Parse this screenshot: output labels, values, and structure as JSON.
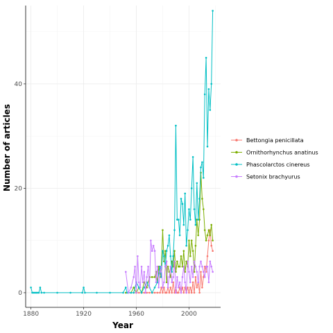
{
  "chart_data": {
    "type": "line",
    "title": "",
    "xlabel": "Year",
    "ylabel": "Number of articles",
    "xlim": [
      1876,
      2024
    ],
    "ylim": [
      -2.8,
      55
    ],
    "xticks": [
      1880,
      1920,
      1960,
      2000
    ],
    "yticks": [
      0,
      20,
      40
    ],
    "grid": true,
    "legend_position": "right",
    "series": [
      {
        "name": "Bettongia penicillata",
        "color": "#F8766D",
        "x": [
          1958,
          1960,
          1962,
          1964,
          1966,
          1968,
          1970,
          1972,
          1974,
          1976,
          1978,
          1979,
          1980,
          1981,
          1982,
          1983,
          1984,
          1985,
          1986,
          1987,
          1988,
          1989,
          1990,
          1991,
          1992,
          1993,
          1994,
          1995,
          1996,
          1997,
          1998,
          1999,
          2000,
          2001,
          2002,
          2003,
          2004,
          2005,
          2006,
          2007,
          2008,
          2009,
          2010,
          2011,
          2012,
          2013,
          2014,
          2015,
          2016,
          2017,
          2018
        ],
        "y": [
          0,
          0,
          0,
          0,
          0,
          0,
          0,
          0,
          0,
          0,
          0,
          1,
          0,
          1,
          0,
          0,
          1,
          0,
          1,
          0,
          2,
          0,
          1,
          0,
          0,
          1,
          0,
          1,
          0,
          1,
          0,
          1,
          0,
          1,
          0,
          2,
          0,
          3,
          1,
          2,
          0,
          4,
          1,
          3,
          5,
          4,
          7,
          10,
          12,
          9,
          8
        ]
      },
      {
        "name": "Ornithorhynchus anatinus",
        "color": "#7CAE00",
        "x": [
          1952,
          1956,
          1958,
          1960,
          1962,
          1964,
          1966,
          1968,
          1970,
          1972,
          1974,
          1975,
          1976,
          1977,
          1978,
          1979,
          1980,
          1981,
          1982,
          1983,
          1984,
          1985,
          1986,
          1987,
          1988,
          1989,
          1990,
          1991,
          1992,
          1993,
          1994,
          1995,
          1996,
          1997,
          1998,
          1999,
          2000,
          2001,
          2002,
          2003,
          2004,
          2005,
          2006,
          2007,
          2008,
          2009,
          2010,
          2011,
          2012,
          2013,
          2014,
          2015,
          2016,
          2017,
          2018
        ],
        "y": [
          0,
          0,
          1,
          0,
          1,
          0,
          2,
          1,
          3,
          3,
          3,
          4,
          2,
          5,
          3,
          5,
          12,
          6,
          8,
          2,
          5,
          4,
          3,
          6,
          5,
          8,
          4,
          6,
          5,
          5,
          7,
          5,
          8,
          4,
          6,
          5,
          10,
          7,
          10,
          8,
          4,
          9,
          14,
          11,
          14,
          23,
          18,
          16,
          12,
          10,
          11,
          12,
          11,
          13,
          10
        ]
      },
      {
        "name": "Phascolarctos cinereus",
        "color": "#00BFC4",
        "x": [
          1880,
          1881,
          1882,
          1883,
          1884,
          1885,
          1886,
          1887,
          1888,
          1890,
          1900,
          1910,
          1919,
          1920,
          1921,
          1930,
          1940,
          1950,
          1952,
          1953,
          1954,
          1956,
          1958,
          1960,
          1962,
          1964,
          1966,
          1968,
          1970,
          1972,
          1974,
          1976,
          1978,
          1979,
          1980,
          1981,
          1982,
          1983,
          1984,
          1985,
          1986,
          1987,
          1988,
          1989,
          1990,
          1991,
          1992,
          1993,
          1994,
          1995,
          1996,
          1997,
          1998,
          1999,
          2000,
          2001,
          2002,
          2003,
          2004,
          2005,
          2006,
          2007,
          2008,
          2009,
          2010,
          2011,
          2012,
          2013,
          2014,
          2015,
          2016,
          2017,
          2018
        ],
        "y": [
          1,
          0,
          0,
          0,
          0,
          0,
          0,
          1,
          0,
          0,
          0,
          0,
          0,
          1,
          0,
          0,
          0,
          0,
          1,
          0,
          0,
          0,
          0,
          2,
          1,
          0,
          1,
          2,
          1,
          0,
          1,
          2,
          5,
          3,
          8,
          7,
          5,
          8,
          9,
          11,
          7,
          4,
          7,
          12,
          32,
          14,
          14,
          11,
          18,
          17,
          13,
          19,
          9,
          12,
          16,
          14,
          20,
          26,
          16,
          13,
          21,
          14,
          18,
          24,
          25,
          22,
          38,
          45,
          28,
          39,
          35,
          40,
          54
        ]
      },
      {
        "name": "Setonix brachyurus",
        "color": "#C77CFF",
        "x": [
          1952,
          1954,
          1956,
          1958,
          1959,
          1960,
          1961,
          1962,
          1963,
          1964,
          1965,
          1966,
          1967,
          1968,
          1969,
          1970,
          1971,
          1972,
          1973,
          1974,
          1975,
          1976,
          1977,
          1978,
          1979,
          1980,
          1981,
          1982,
          1983,
          1984,
          1985,
          1986,
          1987,
          1988,
          1989,
          1990,
          1991,
          1992,
          1993,
          1994,
          1995,
          1996,
          1997,
          1998,
          1999,
          2000,
          2001,
          2002,
          2003,
          2004,
          2005,
          2006,
          2007,
          2008,
          2009,
          2010,
          2011,
          2012,
          2013,
          2014,
          2015,
          2016,
          2017,
          2018
        ],
        "y": [
          4,
          0,
          1,
          3,
          5,
          0,
          7,
          2,
          1,
          5,
          2,
          4,
          0,
          3,
          5,
          1,
          10,
          8,
          9,
          8,
          2,
          5,
          1,
          4,
          5,
          1,
          2,
          5,
          6,
          1,
          3,
          5,
          2,
          3,
          6,
          0,
          3,
          1,
          2,
          0,
          3,
          5,
          2,
          0,
          6,
          4,
          2,
          5,
          3,
          6,
          5,
          4,
          2,
          5,
          6,
          5,
          4,
          3,
          5,
          5,
          2,
          6,
          5,
          4
        ]
      }
    ]
  }
}
